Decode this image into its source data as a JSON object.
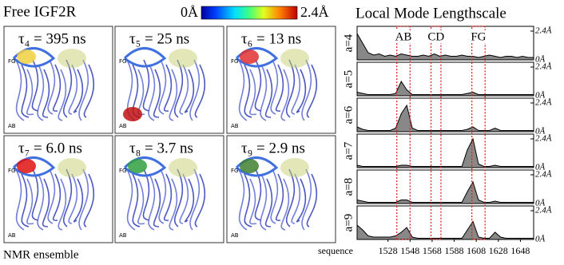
{
  "title": "Free IGF2R",
  "footer": "NMR ensemble",
  "colorbar": {
    "min_label": "0Å",
    "max_label": "2.4Å"
  },
  "panels": [
    {
      "label": "τ₄ = 395 ns",
      "tags": [
        "FG",
        "AB"
      ]
    },
    {
      "label": "τ₅ = 25 ns",
      "tags": [
        "FG",
        "AB"
      ]
    },
    {
      "label": "τ₆ = 13 ns",
      "tags": [
        "FG",
        "AB"
      ]
    },
    {
      "label": "τ₇ = 6.0 ns",
      "tags": [
        "FG",
        "AB"
      ]
    },
    {
      "label": "τ₈ = 3.7 ns",
      "tags": [
        "FG",
        "AB"
      ]
    },
    {
      "label": "τ₉ = 2.9 ns",
      "tags": [
        "FG",
        "AB"
      ]
    }
  ],
  "right_title": "Local Mode Lengthscale",
  "chart_data": [
    {
      "type": "area",
      "ylabel": "a=4",
      "color": "#000000",
      "x": [
        1500,
        1505,
        1510,
        1515,
        1520,
        1525,
        1530,
        1535,
        1540,
        1545,
        1550,
        1555,
        1560,
        1565,
        1570,
        1575,
        1580,
        1585,
        1590,
        1595,
        1600,
        1605,
        1610,
        1615,
        1620,
        1625,
        1630,
        1635,
        1640,
        1645,
        1650,
        1655,
        1660
      ],
      "values": [
        2.2,
        1.4,
        0.6,
        0.4,
        0.5,
        0.3,
        0.4,
        0.3,
        0.5,
        0.4,
        0.3,
        0.3,
        0.4,
        0.3,
        0.5,
        0.3,
        0.4,
        0.3,
        0.3,
        0.4,
        0.3,
        0.3,
        0.2,
        0.3,
        0.4,
        0.3,
        0.2,
        0.3,
        0.3,
        0.2,
        0.3,
        0.2,
        0.2
      ],
      "xlim": [
        1500,
        1660
      ],
      "ylim": [
        0,
        2.4
      ],
      "yticks": [
        {
          "value": 0,
          "label": "0Å"
        },
        {
          "value": 2.4,
          "label": "2.4Å"
        }
      ],
      "annotations": [
        {
          "text": "AB",
          "x": [
            1536,
            1548
          ]
        },
        {
          "text": "CD",
          "x": [
            1567,
            1576
          ]
        },
        {
          "text": "FG",
          "x": [
            1604,
            1616
          ]
        }
      ],
      "annotation_color": "#e02020"
    },
    {
      "type": "area",
      "ylabel": "a=5",
      "color": "#000000",
      "x": [
        1500,
        1505,
        1510,
        1515,
        1520,
        1525,
        1530,
        1535,
        1540,
        1545,
        1550,
        1555,
        1560,
        1565,
        1570,
        1575,
        1580,
        1585,
        1590,
        1595,
        1600,
        1605,
        1610,
        1615,
        1620,
        1625,
        1630,
        1635,
        1640,
        1645,
        1650,
        1655,
        1660
      ],
      "values": [
        0.3,
        0.2,
        0.1,
        0.1,
        0.1,
        0.1,
        0.1,
        0.2,
        1.2,
        0.5,
        0.1,
        0.1,
        0.1,
        0.1,
        0.1,
        0.1,
        0.1,
        0.1,
        0.1,
        0.1,
        0.2,
        0.3,
        0.1,
        0.1,
        0.1,
        0.1,
        0.1,
        0.1,
        0.1,
        0.1,
        0.1,
        0.1,
        0.1
      ],
      "xlim": [
        1500,
        1660
      ],
      "ylim": [
        0,
        2.4
      ],
      "yticks": [
        {
          "value": 0,
          "label": "0Å"
        },
        {
          "value": 2.4,
          "label": "2.4Å"
        }
      ]
    },
    {
      "type": "area",
      "ylabel": "a=6",
      "color": "#000000",
      "x": [
        1500,
        1505,
        1510,
        1515,
        1520,
        1525,
        1530,
        1535,
        1540,
        1545,
        1550,
        1555,
        1560,
        1565,
        1570,
        1575,
        1580,
        1585,
        1590,
        1595,
        1600,
        1605,
        1610,
        1615,
        1620,
        1625,
        1630,
        1635,
        1640,
        1645,
        1650,
        1655,
        1660
      ],
      "values": [
        0.4,
        0.2,
        0.1,
        0.1,
        0.1,
        0.1,
        0.1,
        0.3,
        1.5,
        2.2,
        0.3,
        0.1,
        0.1,
        0.1,
        0.1,
        0.1,
        0.1,
        0.1,
        0.1,
        0.1,
        0.2,
        0.4,
        0.1,
        0.1,
        0.1,
        0.3,
        0.1,
        0.1,
        0.1,
        0.1,
        0.1,
        0.1,
        0.1
      ],
      "xlim": [
        1500,
        1660
      ],
      "ylim": [
        0,
        2.4
      ],
      "yticks": [
        {
          "value": 0,
          "label": "0Å"
        },
        {
          "value": 2.4,
          "label": "2.4Å"
        }
      ]
    },
    {
      "type": "area",
      "ylabel": "a=7",
      "color": "#000000",
      "x": [
        1500,
        1505,
        1510,
        1515,
        1520,
        1525,
        1530,
        1535,
        1540,
        1545,
        1550,
        1555,
        1560,
        1565,
        1570,
        1575,
        1580,
        1585,
        1590,
        1595,
        1600,
        1605,
        1610,
        1615,
        1620,
        1625,
        1630,
        1635,
        1640,
        1645,
        1650,
        1655,
        1660
      ],
      "values": [
        0.2,
        0.1,
        0.1,
        0.1,
        0.1,
        0.1,
        0.1,
        0.1,
        0.2,
        0.2,
        0.1,
        0.1,
        0.1,
        0.1,
        0.1,
        0.1,
        0.1,
        0.1,
        0.1,
        0.1,
        1.5,
        2.4,
        0.3,
        0.1,
        0.1,
        0.2,
        0.1,
        0.1,
        0.1,
        0.1,
        0.1,
        0.1,
        0.1
      ],
      "xlim": [
        1500,
        1660
      ],
      "ylim": [
        0,
        2.4
      ],
      "yticks": [
        {
          "value": 0,
          "label": "0Å"
        },
        {
          "value": 2.4,
          "label": "2.4Å"
        }
      ]
    },
    {
      "type": "area",
      "ylabel": "a=8",
      "color": "#000000",
      "x": [
        1500,
        1505,
        1510,
        1515,
        1520,
        1525,
        1530,
        1535,
        1540,
        1545,
        1550,
        1555,
        1560,
        1565,
        1570,
        1575,
        1580,
        1585,
        1590,
        1595,
        1600,
        1605,
        1610,
        1615,
        1620,
        1625,
        1630,
        1635,
        1640,
        1645,
        1650,
        1655,
        1660
      ],
      "values": [
        0.3,
        0.2,
        0.1,
        0.1,
        0.1,
        0.1,
        0.1,
        0.1,
        0.3,
        0.3,
        0.1,
        0.1,
        0.1,
        0.1,
        0.1,
        0.1,
        0.1,
        0.1,
        0.1,
        0.1,
        1.0,
        1.8,
        0.3,
        0.1,
        0.1,
        0.2,
        0.1,
        0.1,
        0.1,
        0.1,
        0.1,
        0.1,
        0.1
      ],
      "xlim": [
        1500,
        1660
      ],
      "ylim": [
        0,
        2.4
      ],
      "yticks": [
        {
          "value": 0,
          "label": "0Å"
        },
        {
          "value": 2.4,
          "label": "2.4Å"
        }
      ]
    },
    {
      "type": "area",
      "ylabel": "a=9",
      "color": "#000000",
      "x": [
        1500,
        1505,
        1510,
        1515,
        1520,
        1525,
        1530,
        1535,
        1540,
        1545,
        1550,
        1555,
        1560,
        1565,
        1570,
        1575,
        1580,
        1585,
        1590,
        1595,
        1600,
        1605,
        1610,
        1615,
        1620,
        1625,
        1630,
        1635,
        1640,
        1645,
        1650,
        1655,
        1660
      ],
      "values": [
        1.2,
        0.8,
        0.3,
        0.2,
        0.2,
        0.2,
        0.2,
        0.3,
        0.6,
        1.0,
        0.2,
        0.1,
        0.1,
        0.1,
        0.1,
        0.1,
        0.1,
        0.1,
        0.1,
        0.1,
        0.8,
        1.5,
        0.2,
        0.1,
        0.1,
        0.6,
        0.2,
        0.1,
        0.1,
        0.1,
        0.1,
        0.1,
        0.1
      ],
      "xlim": [
        1500,
        1660
      ],
      "ylim": [
        0,
        2.4
      ],
      "yticks": [
        {
          "value": 0,
          "label": "0Å"
        },
        {
          "value": 2.4,
          "label": "2.4Å"
        }
      ],
      "xlabel": "sequence",
      "xticks": [
        1528,
        1548,
        1568,
        1588,
        1608,
        1628,
        1648
      ]
    }
  ]
}
